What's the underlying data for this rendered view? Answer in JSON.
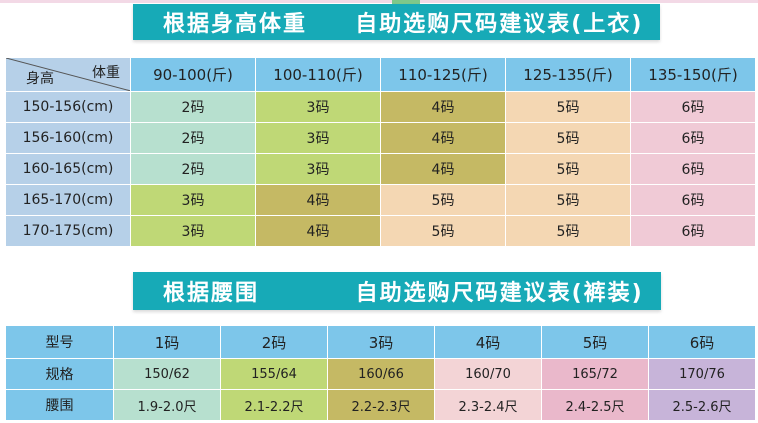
{
  "colors": {
    "banner": "#17aab7",
    "header": "#7dc6ea",
    "rowhead": "#b6d0e8",
    "size_colors": {
      "2码": "#b7e0cf",
      "3码": "#bfd876",
      "4码": "#c5b964",
      "5码": "#f4d7b3",
      "6码": "#f0cad6"
    },
    "waist_colors": [
      "#b7e0cf",
      "#bfd876",
      "#c5b964",
      "#f3d4d6",
      "#eab8cb",
      "#c7b4d9"
    ]
  },
  "top_section": {
    "title": "根据身高体重     自助选购尺码建议表(上衣)",
    "corner_weight": "体重",
    "corner_height": "身高",
    "weight_columns": [
      "90-100(斤)",
      "100-110(斤)",
      "110-125(斤)",
      "125-135(斤)",
      "135-150(斤)"
    ],
    "rows": [
      {
        "height": "150-156(cm)",
        "sizes": [
          "2码",
          "3码",
          "4码",
          "5码",
          "6码"
        ]
      },
      {
        "height": "156-160(cm)",
        "sizes": [
          "2码",
          "3码",
          "4码",
          "5码",
          "6码"
        ]
      },
      {
        "height": "160-165(cm)",
        "sizes": [
          "2码",
          "3码",
          "4码",
          "5码",
          "6码"
        ]
      },
      {
        "height": "165-170(cm)",
        "sizes": [
          "3码",
          "4码",
          "5码",
          "5码",
          "6码"
        ]
      },
      {
        "height": "170-175(cm)",
        "sizes": [
          "3码",
          "4码",
          "5码",
          "5码",
          "6码"
        ]
      }
    ]
  },
  "bottom_section": {
    "title": "根据腰围          自助选购尺码建议表(裤装)",
    "header_label": "型号",
    "sizes": [
      "1码",
      "2码",
      "3码",
      "4码",
      "5码",
      "6码"
    ],
    "spec_label": "规格",
    "specs": [
      "150/62",
      "155/64",
      "160/66",
      "160/70",
      "165/72",
      "170/76"
    ],
    "waist_label": "腰围",
    "waists": [
      "1.9-2.0尺",
      "2.1-2.2尺",
      "2.2-2.3尺",
      "2.3-2.4尺",
      "2.4-2.5尺",
      "2.5-2.6尺"
    ]
  }
}
